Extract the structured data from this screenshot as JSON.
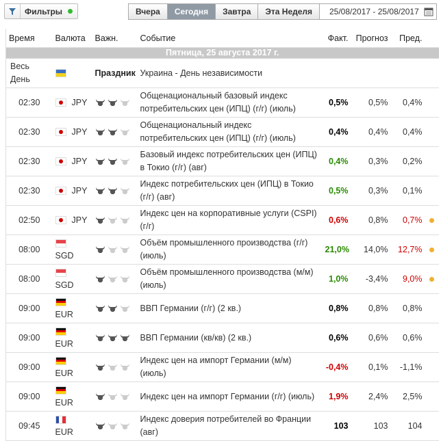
{
  "toolbar": {
    "filter_label": "Фильтры",
    "tabs": [
      "Вчера",
      "Сегодня",
      "Завтра",
      "Эта Неделя"
    ],
    "active_tab": 1,
    "date_range": "25/08/2017 - 25/08/2017"
  },
  "table": {
    "headers": [
      "Время",
      "Валюта",
      "Важн.",
      "Событие",
      "Факт.",
      "Прогноз",
      "Пред."
    ],
    "day_header": "Пятница, 25 августа 2017 г.",
    "holiday": {
      "time": "Весь День",
      "flag": {
        "stripes": [
          "#3a6fc4",
          "#f2d21b"
        ],
        "vertical": false
      },
      "label": "Праздник",
      "event": "Украина - День независимости"
    },
    "rows": [
      {
        "time": "02:30",
        "flag": {
          "stripes": [
            "#ffffff"
          ],
          "vertical": false,
          "dot": "#cc0000"
        },
        "currency": "JPY",
        "importance": 2,
        "event": "Общенациональный базовый индекс потребительских цен (ИПЦ) (г/г) (июль)",
        "actual": "0,5%",
        "actual_color": "#000000",
        "forecast": "0,5%",
        "previous": "0,4%",
        "previous_color": "#333333",
        "alert": false
      },
      {
        "time": "02:30",
        "flag": {
          "stripes": [
            "#ffffff"
          ],
          "vertical": false,
          "dot": "#cc0000"
        },
        "currency": "JPY",
        "importance": 2,
        "event": "Общенациональный индекс потребительских цен (ИПЦ) (г/г) (июль)",
        "actual": "0,4%",
        "actual_color": "#000000",
        "forecast": "0,4%",
        "previous": "0,4%",
        "previous_color": "#333333",
        "alert": false
      },
      {
        "time": "02:30",
        "flag": {
          "stripes": [
            "#ffffff"
          ],
          "vertical": false,
          "dot": "#cc0000"
        },
        "currency": "JPY",
        "importance": 2,
        "event": "Базовый индекс потребительских цен (ИПЦ) в Токио (г/г) (авг)",
        "actual": "0,4%",
        "actual_color": "#2a8a00",
        "forecast": "0,3%",
        "previous": "0,2%",
        "previous_color": "#333333",
        "alert": false
      },
      {
        "time": "02:30",
        "flag": {
          "stripes": [
            "#ffffff"
          ],
          "vertical": false,
          "dot": "#cc0000"
        },
        "currency": "JPY",
        "importance": 2,
        "event": "Индекс потребительских цен (ИПЦ) в Токио (г/г) (авг)",
        "actual": "0,5%",
        "actual_color": "#2a8a00",
        "forecast": "0,3%",
        "previous": "0,1%",
        "previous_color": "#333333",
        "alert": false
      },
      {
        "time": "02:50",
        "flag": {
          "stripes": [
            "#ffffff"
          ],
          "vertical": false,
          "dot": "#cc0000"
        },
        "currency": "JPY",
        "importance": 1,
        "event": "Индекс цен на корпоративные услуги (CSPI) (г/г)",
        "actual": "0,6%",
        "actual_color": "#cc0000",
        "forecast": "0,8%",
        "previous": "0,7%",
        "previous_color": "#cc0000",
        "alert": true
      },
      {
        "time": "08:00",
        "flag": {
          "stripes": [
            "#e8434a",
            "#ffffff"
          ],
          "vertical": false
        },
        "currency": "SGD",
        "importance": 1,
        "event": "Объём промышленного производства (г/г) (июль)",
        "actual": "21,0%",
        "actual_color": "#2a8a00",
        "forecast": "14,0%",
        "previous": "12,7%",
        "previous_color": "#cc0000",
        "alert": true
      },
      {
        "time": "08:00",
        "flag": {
          "stripes": [
            "#e8434a",
            "#ffffff"
          ],
          "vertical": false
        },
        "currency": "SGD",
        "importance": 1,
        "event": "Объём промышленного производства (м/м) (июль)",
        "actual": "1,0%",
        "actual_color": "#2a8a00",
        "forecast": "-3,4%",
        "previous": "9,0%",
        "previous_color": "#cc0000",
        "alert": true
      },
      {
        "time": "09:00",
        "flag": {
          "stripes": [
            "#111111",
            "#dd0000",
            "#ffcc00"
          ],
          "vertical": false
        },
        "currency": "EUR",
        "importance": 2,
        "event": "ВВП Германии (г/г) (2 кв.)",
        "actual": "0,8%",
        "actual_color": "#000000",
        "forecast": "0,8%",
        "previous": "0,8%",
        "previous_color": "#333333",
        "alert": false
      },
      {
        "time": "09:00",
        "flag": {
          "stripes": [
            "#111111",
            "#dd0000",
            "#ffcc00"
          ],
          "vertical": false
        },
        "currency": "EUR",
        "importance": 3,
        "event": "ВВП Германии (кв/кв) (2 кв.)",
        "actual": "0,6%",
        "actual_color": "#000000",
        "forecast": "0,6%",
        "previous": "0,6%",
        "previous_color": "#333333",
        "alert": false
      },
      {
        "time": "09:00",
        "flag": {
          "stripes": [
            "#111111",
            "#dd0000",
            "#ffcc00"
          ],
          "vertical": false
        },
        "currency": "EUR",
        "importance": 1,
        "event": "Индекс цен на импорт Германии (м/м) (июль)",
        "actual": "-0,4%",
        "actual_color": "#cc0000",
        "forecast": "0,1%",
        "previous": "-1,1%",
        "previous_color": "#333333",
        "alert": false
      },
      {
        "time": "09:00",
        "flag": {
          "stripes": [
            "#111111",
            "#dd0000",
            "#ffcc00"
          ],
          "vertical": false
        },
        "currency": "EUR",
        "importance": 1,
        "event": "Индекс цен на импорт Германии (г/г) (июль)",
        "actual": "1,9%",
        "actual_color": "#cc0000",
        "forecast": "2,4%",
        "previous": "2,5%",
        "previous_color": "#333333",
        "alert": false
      },
      {
        "time": "09:45",
        "flag": {
          "stripes": [
            "#2b4fa8",
            "#ffffff",
            "#e0303a"
          ],
          "vertical": true
        },
        "currency": "EUR",
        "importance": 1,
        "event": "Индекс доверия потребителей во Франции (авг)",
        "actual": "103",
        "actual_color": "#000000",
        "forecast": "103",
        "previous": "104",
        "previous_color": "#333333",
        "alert": false
      }
    ]
  }
}
